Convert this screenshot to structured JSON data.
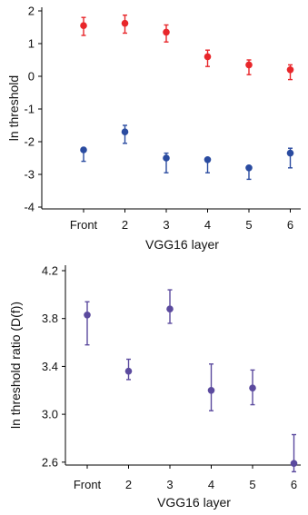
{
  "chart_data": [
    {
      "type": "scatter",
      "title": "",
      "xlabel": "VGG16 layer",
      "ylabel": "ln  threshold",
      "categories": [
        "Front",
        "2",
        "3",
        "4",
        "5",
        "6"
      ],
      "y_ticks": [
        "2",
        "1",
        "0",
        "-1",
        "-2",
        "-3",
        "-4"
      ],
      "ylim": [
        -4,
        2
      ],
      "series": [
        {
          "color": "#e8262a",
          "values": [
            1.55,
            1.62,
            1.35,
            0.6,
            0.35,
            0.2
          ],
          "err_low": [
            0.3,
            0.3,
            0.3,
            0.3,
            0.3,
            0.3
          ],
          "err_high": [
            0.25,
            0.25,
            0.22,
            0.2,
            0.15,
            0.15
          ]
        },
        {
          "color": "#2a4ba0",
          "values": [
            -2.25,
            -1.7,
            -2.5,
            -2.55,
            -2.8,
            -2.35
          ],
          "err_low": [
            0.35,
            0.35,
            0.45,
            0.4,
            0.35,
            0.45
          ],
          "err_high": [
            0.05,
            0.2,
            0.15,
            0.05,
            0.05,
            0.15
          ]
        }
      ]
    },
    {
      "type": "scatter",
      "title": "",
      "xlabel": "VGG16 layer",
      "ylabel": "ln threshold ratio (D(f))",
      "categories": [
        "Front",
        "2",
        "3",
        "4",
        "5",
        "6"
      ],
      "y_ticks": [
        "4.2",
        "3.8",
        "3.4",
        "3.0",
        "2.6"
      ],
      "ylim": [
        2.5,
        4.2
      ],
      "series": [
        {
          "color": "#5b4a9e",
          "values": [
            3.83,
            3.36,
            3.88,
            3.2,
            3.22,
            2.59
          ],
          "err_low": [
            0.25,
            0.07,
            0.12,
            0.17,
            0.14,
            0.07
          ],
          "err_high": [
            0.11,
            0.1,
            0.16,
            0.22,
            0.15,
            0.24
          ]
        }
      ]
    }
  ]
}
